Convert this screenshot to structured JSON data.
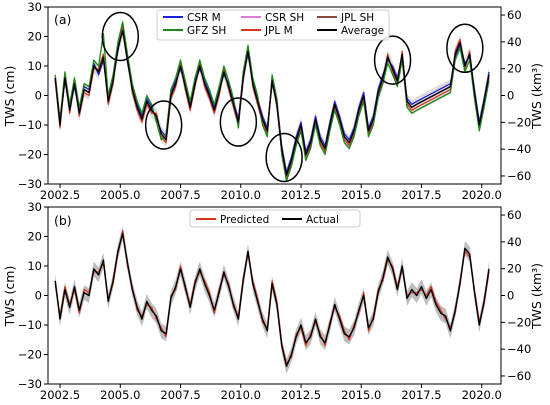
{
  "chart_data": [
    {
      "type": "line",
      "panel_label": "(a)",
      "ylabel": "TWS (cm)",
      "ylabel_right": "TWS (km³)",
      "xlim": [
        2002.0,
        2020.8
      ],
      "ylim": [
        -30,
        30
      ],
      "ylim_right": [
        -66,
        66
      ],
      "x_ticks": [
        2002.5,
        2005.0,
        2007.5,
        2010.0,
        2012.5,
        2015.0,
        2017.5,
        2020.0
      ],
      "x_tick_labels": [
        "2002.5",
        "2005.0",
        "2007.5",
        "2010.0",
        "2012.5",
        "2015.0",
        "2017.5",
        "2020.0"
      ],
      "y_ticks": [
        -30,
        -20,
        -10,
        0,
        10,
        20,
        30
      ],
      "y_tick_labels": [
        "−30",
        "−20",
        "−10",
        "0",
        "10",
        "20",
        "30"
      ],
      "y_ticks_right": [
        -60,
        -40,
        -20,
        0,
        20,
        40,
        60
      ],
      "y_tick_labels_right": [
        "−60",
        "−40",
        "−20",
        "0",
        "20",
        "40",
        "60"
      ],
      "legend_position": "top-center",
      "legend": [
        {
          "name": "CSR M",
          "color": "#1f1fd8"
        },
        {
          "name": "GFZ SH",
          "color": "#1a8a1a"
        },
        {
          "name": "CSR SH",
          "color": "#e07ad8"
        },
        {
          "name": "JPL M",
          "color": "#d9351f"
        },
        {
          "name": "JPL SH",
          "color": "#8b4a3a"
        },
        {
          "name": "Average",
          "color": "#000000"
        }
      ],
      "highlight_ellipses": [
        {
          "x": 2005.0,
          "y": 20
        },
        {
          "x": 2006.8,
          "y": -10
        },
        {
          "x": 2009.9,
          "y": -9
        },
        {
          "x": 2011.8,
          "y": -21
        },
        {
          "x": 2016.3,
          "y": 12
        },
        {
          "x": 2019.3,
          "y": 16
        }
      ],
      "x": [
        2002.3,
        2002.5,
        2002.7,
        2002.9,
        2003.1,
        2003.3,
        2003.5,
        2003.7,
        2003.9,
        2004.1,
        2004.3,
        2004.5,
        2004.7,
        2004.9,
        2005.1,
        2005.3,
        2005.5,
        2005.7,
        2005.9,
        2006.1,
        2006.3,
        2006.5,
        2006.7,
        2006.9,
        2007.1,
        2007.3,
        2007.5,
        2007.7,
        2007.9,
        2008.1,
        2008.3,
        2008.5,
        2008.7,
        2008.9,
        2009.1,
        2009.3,
        2009.5,
        2009.7,
        2009.9,
        2010.1,
        2010.3,
        2010.5,
        2010.7,
        2010.9,
        2011.1,
        2011.3,
        2011.5,
        2011.7,
        2011.9,
        2012.1,
        2012.3,
        2012.5,
        2012.7,
        2012.9,
        2013.1,
        2013.3,
        2013.5,
        2013.7,
        2013.9,
        2014.1,
        2014.3,
        2014.5,
        2014.7,
        2014.9,
        2015.1,
        2015.3,
        2015.5,
        2015.7,
        2015.9,
        2016.1,
        2016.3,
        2016.5,
        2016.7,
        2016.9,
        2017.1,
        2017.3,
        2018.7,
        2018.9,
        2019.1,
        2019.3,
        2019.5,
        2019.7,
        2019.9,
        2020.1,
        2020.3
      ],
      "series": [
        {
          "name": "Average",
          "values": [
            6,
            -10,
            6,
            -5,
            4,
            -6,
            2,
            1,
            10,
            8,
            13,
            -2,
            5,
            16,
            22,
            12,
            2,
            -4,
            -8,
            -2,
            -5,
            -7,
            -13,
            -15,
            0,
            4,
            10,
            3,
            -4,
            4,
            10,
            4,
            0,
            -5,
            1,
            8,
            3,
            -3,
            -9,
            6,
            15,
            4,
            -2,
            -8,
            -12,
            5,
            -3,
            -18,
            -27,
            -22,
            -15,
            -10,
            -20,
            -16,
            -8,
            -15,
            -18,
            -10,
            -3,
            -8,
            -14,
            -16,
            -12,
            -5,
            0,
            -12,
            -8,
            1,
            6,
            13,
            9,
            5,
            14,
            -2,
            -4,
            -3,
            3,
            14,
            18,
            10,
            14,
            1,
            -10,
            -2,
            7
          ]
        },
        {
          "name": "CSR M",
          "values": [
            6,
            -9,
            5,
            -4,
            3,
            -5,
            3,
            2,
            11,
            7,
            12,
            -1,
            6,
            15,
            23,
            11,
            3,
            -3,
            -7,
            -1,
            -4,
            -8,
            -12,
            -14,
            1,
            5,
            9,
            4,
            -3,
            5,
            9,
            5,
            1,
            -4,
            2,
            7,
            4,
            -2,
            -8,
            7,
            14,
            5,
            -1,
            -7,
            -11,
            4,
            -2,
            -17,
            -26,
            -21,
            -14,
            -9,
            -19,
            -15,
            -7,
            -14,
            -17,
            -9,
            -2,
            -7,
            -13,
            -15,
            -11,
            -4,
            1,
            -11,
            -7,
            2,
            7,
            12,
            10,
            6,
            13,
            -1,
            -3,
            -2,
            4,
            13,
            17,
            11,
            13,
            2,
            -9,
            -1,
            8
          ]
        },
        {
          "name": "JPL M",
          "values": [
            5,
            -11,
            7,
            -6,
            5,
            -7,
            1,
            0,
            9,
            9,
            14,
            -3,
            4,
            17,
            24,
            13,
            1,
            -5,
            -9,
            -3,
            -6,
            -6,
            -14,
            -16,
            -1,
            3,
            11,
            2,
            -5,
            3,
            11,
            3,
            -1,
            -6,
            0,
            9,
            2,
            -4,
            -10,
            5,
            16,
            3,
            -3,
            -9,
            -13,
            6,
            -4,
            -19,
            -28,
            -23,
            -16,
            -11,
            -21,
            -17,
            -9,
            -16,
            -19,
            -11,
            -4,
            -9,
            -15,
            -17,
            -13,
            -6,
            -1,
            -13,
            -9,
            0,
            5,
            14,
            8,
            4,
            15,
            -3,
            -5,
            -4,
            2,
            15,
            19,
            9,
            15,
            0,
            -11,
            -3,
            6
          ]
        },
        {
          "name": "GFZ SH",
          "values": [
            7,
            -8,
            8,
            -3,
            6,
            -4,
            4,
            3,
            12,
            10,
            21,
            0,
            7,
            18,
            25,
            14,
            4,
            -2,
            -6,
            0,
            -3,
            -9,
            -15,
            -13,
            2,
            6,
            12,
            5,
            -2,
            6,
            12,
            6,
            2,
            -3,
            3,
            10,
            5,
            -1,
            -11,
            8,
            17,
            6,
            0,
            -10,
            -14,
            7,
            -1,
            -20,
            -29,
            -24,
            -17,
            -12,
            -22,
            -18,
            -10,
            -17,
            -20,
            -12,
            -5,
            -10,
            -16,
            -18,
            -14,
            -7,
            -2,
            -14,
            -10,
            -1,
            4,
            11,
            7,
            3,
            12,
            -4,
            -6,
            -5,
            1,
            12,
            16,
            8,
            12,
            -1,
            -12,
            -4,
            5
          ]
        },
        {
          "name": "JPL SH",
          "values": [
            6,
            -10,
            6,
            -5,
            4,
            -6,
            2,
            1,
            10,
            8,
            13,
            -2,
            5,
            16,
            22,
            12,
            2,
            -4,
            -8,
            -2,
            -5,
            -7,
            -13,
            -15,
            0,
            4,
            10,
            3,
            -4,
            4,
            10,
            4,
            0,
            -5,
            1,
            8,
            3,
            -3,
            -9,
            6,
            15,
            4,
            -2,
            -8,
            -12,
            5,
            -3,
            -18,
            -27,
            -22,
            -15,
            -10,
            -20,
            -16,
            -8,
            -15,
            -18,
            -10,
            -3,
            -8,
            -14,
            -16,
            -12,
            -5,
            0,
            -12,
            -8,
            1,
            6,
            13,
            9,
            5,
            14,
            -2,
            -4,
            -3,
            3,
            14,
            18,
            10,
            14,
            1,
            -10,
            -2,
            7
          ]
        },
        {
          "name": "CSR SH",
          "values": [
            6,
            -10,
            6,
            -5,
            4,
            -6,
            2,
            1,
            10,
            8,
            13,
            -2,
            5,
            16,
            22,
            12,
            2,
            -4,
            -8,
            -2,
            -5,
            -7,
            -13,
            -15,
            0,
            4,
            10,
            3,
            -4,
            4,
            10,
            4,
            0,
            -5,
            1,
            8,
            3,
            -3,
            -9,
            6,
            15,
            4,
            -2,
            -8,
            -12,
            5,
            -3,
            -18,
            -27,
            -22,
            -15,
            -10,
            -20,
            -16,
            -8,
            -15,
            -18,
            -10,
            -3,
            -8,
            -14,
            -16,
            -12,
            -5,
            0,
            -12,
            -8,
            1,
            6,
            13,
            9,
            5,
            14,
            -2,
            -4,
            -3,
            3,
            14,
            18,
            10,
            14,
            1,
            -10,
            -2,
            7
          ]
        }
      ]
    },
    {
      "type": "line",
      "panel_label": "(b)",
      "ylabel": "TWS (cm)",
      "ylabel_right": "TWS (km³)",
      "xlim": [
        2002.0,
        2020.8
      ],
      "ylim": [
        -30,
        30
      ],
      "ylim_right": [
        -66,
        66
      ],
      "x_ticks": [
        2002.5,
        2005.0,
        2007.5,
        2010.0,
        2012.5,
        2015.0,
        2017.5,
        2020.0
      ],
      "x_tick_labels": [
        "2002.5",
        "2005.0",
        "2007.5",
        "2010.0",
        "2012.5",
        "2015.0",
        "2017.5",
        "2020.0"
      ],
      "y_ticks": [
        -30,
        -20,
        -10,
        0,
        10,
        20,
        30
      ],
      "y_tick_labels": [
        "−30",
        "−20",
        "−10",
        "0",
        "10",
        "20",
        "30"
      ],
      "y_ticks_right": [
        -60,
        -40,
        -20,
        0,
        20,
        40,
        60
      ],
      "y_tick_labels_right": [
        "−60",
        "−40",
        "−20",
        "0",
        "20",
        "40",
        "60"
      ],
      "legend_position": "top-center",
      "legend": [
        {
          "name": "Predicted",
          "color": "#d9351f"
        },
        {
          "name": "Actual",
          "color": "#000000"
        }
      ],
      "x": [
        2002.3,
        2002.5,
        2002.7,
        2002.9,
        2003.1,
        2003.3,
        2003.5,
        2003.7,
        2003.9,
        2004.1,
        2004.3,
        2004.5,
        2004.7,
        2004.9,
        2005.1,
        2005.3,
        2005.5,
        2005.7,
        2005.9,
        2006.1,
        2006.3,
        2006.5,
        2006.7,
        2006.9,
        2007.1,
        2007.3,
        2007.5,
        2007.7,
        2007.9,
        2008.1,
        2008.3,
        2008.5,
        2008.7,
        2008.9,
        2009.1,
        2009.3,
        2009.5,
        2009.7,
        2009.9,
        2010.1,
        2010.3,
        2010.5,
        2010.7,
        2010.9,
        2011.1,
        2011.3,
        2011.5,
        2011.7,
        2011.9,
        2012.1,
        2012.3,
        2012.5,
        2012.7,
        2012.9,
        2013.1,
        2013.3,
        2013.5,
        2013.7,
        2013.9,
        2014.1,
        2014.3,
        2014.5,
        2014.7,
        2014.9,
        2015.1,
        2015.3,
        2015.5,
        2015.7,
        2015.9,
        2016.1,
        2016.3,
        2016.5,
        2016.7,
        2016.9,
        2017.1,
        2017.3,
        2017.5,
        2017.7,
        2017.9,
        2018.1,
        2018.3,
        2018.5,
        2018.7,
        2018.9,
        2019.1,
        2019.3,
        2019.5,
        2019.7,
        2019.9,
        2020.1,
        2020.3
      ],
      "series": [
        {
          "name": "Actual",
          "values": [
            5,
            -8,
            2,
            -4,
            3,
            -5,
            1,
            0,
            9,
            7,
            12,
            -2,
            5,
            15,
            21,
            11,
            2,
            -4,
            -8,
            -2,
            -5,
            -7,
            -12,
            -13,
            -1,
            3,
            9,
            3,
            -4,
            4,
            9,
            4,
            0,
            -5,
            1,
            8,
            3,
            -3,
            -8,
            5,
            15,
            4,
            -2,
            -8,
            -12,
            4,
            -3,
            -17,
            -24,
            -20,
            -14,
            -10,
            -16,
            -14,
            -8,
            -14,
            -16,
            -10,
            -3,
            -8,
            -13,
            -14,
            -11,
            -5,
            0,
            -11,
            -8,
            1,
            6,
            13,
            9,
            2,
            10,
            -1,
            2,
            0,
            3,
            -1,
            2,
            -3,
            -6,
            -7,
            -12,
            -5,
            4,
            16,
            14,
            1,
            -10,
            -2,
            9
          ]
        },
        {
          "name": "Predicted",
          "values": [
            4,
            -7,
            3,
            -3,
            2,
            -6,
            2,
            1,
            8,
            8,
            11,
            -1,
            4,
            14,
            22,
            10,
            3,
            -5,
            -7,
            -3,
            -4,
            -8,
            -11,
            -14,
            0,
            2,
            10,
            2,
            -3,
            5,
            8,
            5,
            1,
            -6,
            2,
            7,
            4,
            -4,
            -7,
            6,
            14,
            5,
            -1,
            -9,
            -11,
            5,
            -2,
            -16,
            -23,
            -21,
            -13,
            -11,
            -17,
            -13,
            -9,
            -13,
            -17,
            -9,
            -4,
            -7,
            -12,
            -15,
            -10,
            -6,
            1,
            -12,
            -7,
            2,
            5,
            12,
            10,
            3,
            9,
            0,
            1,
            1,
            2,
            0,
            3,
            -2,
            -5,
            -8,
            -11,
            -6,
            5,
            15,
            13,
            2,
            -9,
            -3,
            8
          ]
        }
      ]
    }
  ]
}
